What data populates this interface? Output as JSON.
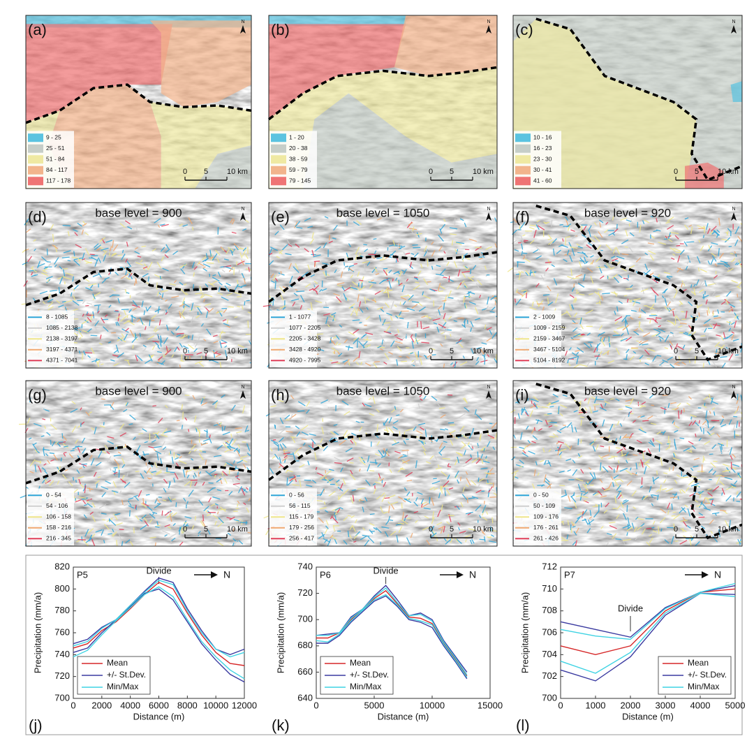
{
  "maps": [
    {
      "label": "(a)",
      "legend": [
        "9 - 25",
        "25 - 51",
        "51 - 84",
        "84 - 117",
        "117 - 178"
      ],
      "scale": [
        "0",
        "5",
        "10 km"
      ],
      "north": "N"
    },
    {
      "label": "(b)",
      "legend": [
        "1 - 20",
        "20 - 38",
        "38 - 59",
        "59 - 79",
        "79 - 145"
      ],
      "scale": [
        "0",
        "5",
        "10 km"
      ],
      "north": "N"
    },
    {
      "label": "(c)",
      "legend": [
        "10 - 16",
        "16 - 23",
        "23 - 30",
        "30 - 41",
        "41 - 60"
      ],
      "scale": [
        "0",
        "5",
        "10 km"
      ],
      "north": "N"
    },
    {
      "label": "(d)",
      "subtitle": "base level = 900",
      "legend": [
        "8 - 1085",
        "1085 - 2138",
        "2138 - 3197",
        "3197 - 4371",
        "4371 - 7041"
      ],
      "scale": [
        "0",
        "5",
        "10 km"
      ],
      "north": "N"
    },
    {
      "label": "(e)",
      "subtitle": "base level = 1050",
      "legend": [
        "1 - 1077",
        "1077 - 2205",
        "2205 - 3428",
        "3428 - 4920",
        "4920 - 7995"
      ],
      "scale": [
        "0",
        "5",
        "10 km"
      ],
      "north": "N"
    },
    {
      "label": "(f)",
      "subtitle": "base level = 920",
      "legend": [
        "2 - 1009",
        "1009 - 2159",
        "2159 - 3467",
        "3467 - 5104",
        "5104 - 8192"
      ],
      "scale": [
        "0",
        "5",
        "10 km"
      ],
      "north": "N"
    },
    {
      "label": "(g)",
      "subtitle": "base level = 900",
      "legend": [
        "0 - 54",
        "54 - 106",
        "106 - 158",
        "158 - 216",
        "216 - 345"
      ],
      "scale": [
        "0",
        "5",
        "10 km"
      ],
      "north": "N"
    },
    {
      "label": "(h)",
      "subtitle": "base level = 1050",
      "legend": [
        "0 - 56",
        "56 - 115",
        "115 - 179",
        "179 - 256",
        "256 - 417"
      ],
      "scale": [
        "0",
        "5",
        "10 km"
      ],
      "north": "N"
    },
    {
      "label": "(i)",
      "subtitle": "base level = 920",
      "legend": [
        "0 - 50",
        "50 - 109",
        "109 - 176",
        "176 - 261",
        "261 - 426"
      ],
      "scale": [
        "0",
        "5",
        "10 km"
      ],
      "north": "N"
    }
  ],
  "map_legend_colors": {
    "fill": [
      "#5bc3e0",
      "#c6cec8",
      "#efe9a2",
      "#f2b48c",
      "#ef7474"
    ],
    "line": [
      "#2fa6d8",
      "#cfcfcf",
      "#efe68a",
      "#f0a870",
      "#e0405a"
    ]
  },
  "chart_data": [
    {
      "type": "line",
      "label": "(j)",
      "title": "P5",
      "annotation": "Divide",
      "north": "N",
      "xlabel": "Distance (m)",
      "ylabel": "Precipitation (mm/a)",
      "x": [
        0,
        1000,
        2000,
        3000,
        4000,
        5000,
        6000,
        7000,
        8000,
        9000,
        10000,
        11000,
        12000
      ],
      "xlim": [
        0,
        12000
      ],
      "xticks": [
        0,
        2000,
        4000,
        6000,
        8000,
        10000,
        12000
      ],
      "ylim": [
        700,
        820
      ],
      "yticks": [
        700,
        720,
        740,
        760,
        780,
        800,
        820
      ],
      "legend_position": "lower left",
      "series": [
        {
          "name": "Mean",
          "color": "#d62728",
          "values": [
            746,
            750,
            762,
            770,
            782,
            795,
            806,
            800,
            778,
            758,
            742,
            732,
            730
          ]
        },
        {
          "name": "+/- St.Dev.",
          "color": "#3a3aa0",
          "upper": [
            750,
            754,
            765,
            772,
            785,
            798,
            810,
            806,
            782,
            762,
            745,
            740,
            745
          ],
          "lower": [
            742,
            746,
            760,
            772,
            784,
            796,
            800,
            790,
            770,
            750,
            735,
            722,
            715
          ]
        },
        {
          "name": "Min/Max",
          "color": "#3fd3e3",
          "upper": [
            748,
            752,
            764,
            772,
            785,
            797,
            808,
            804,
            780,
            760,
            745,
            738,
            742
          ],
          "lower": [
            738,
            744,
            758,
            771,
            783,
            795,
            802,
            793,
            772,
            752,
            738,
            726,
            718
          ]
        }
      ]
    },
    {
      "type": "line",
      "label": "(k)",
      "title": "P6",
      "annotation": "Divide",
      "north": "N",
      "xlabel": "Distance (m)",
      "ylabel": "Precipitation (mm/a)",
      "x": [
        0,
        1000,
        2000,
        3000,
        4000,
        5000,
        6000,
        7000,
        8000,
        9000,
        10000,
        11000,
        12000,
        13000
      ],
      "xlim": [
        0,
        15000
      ],
      "xticks": [
        0,
        5000,
        10000,
        15000
      ],
      "ylim": [
        640,
        740
      ],
      "yticks": [
        640,
        660,
        680,
        700,
        720,
        740
      ],
      "legend_position": "lower left",
      "series": [
        {
          "name": "Mean",
          "color": "#d62728",
          "values": [
            686,
            686,
            690,
            700,
            708,
            716,
            722,
            712,
            702,
            701,
            697,
            682,
            670,
            657
          ]
        },
        {
          "name": "+/- St.Dev.",
          "color": "#3a3aa0",
          "upper": [
            688,
            689,
            690,
            702,
            708,
            718,
            726,
            715,
            703,
            705,
            700,
            684,
            672,
            660
          ],
          "lower": [
            682,
            682,
            688,
            698,
            706,
            714,
            718,
            710,
            700,
            698,
            694,
            680,
            668,
            655
          ]
        },
        {
          "name": "Min/Max",
          "color": "#3fd3e3",
          "upper": [
            688,
            688,
            690,
            701,
            708,
            717,
            724,
            713,
            703,
            704,
            699,
            683,
            671,
            658
          ],
          "lower": [
            684,
            683,
            689,
            699,
            707,
            715,
            719,
            711,
            701,
            699,
            696,
            681,
            669,
            656
          ]
        }
      ]
    },
    {
      "type": "line",
      "label": "(l)",
      "title": "P7",
      "annotation": "Divide",
      "north": "N",
      "xlabel": "Distance (m)",
      "ylabel": "Precipitation (mm/a)",
      "x": [
        0,
        1000,
        2000,
        3000,
        4000,
        5000
      ],
      "xlim": [
        0,
        5000
      ],
      "xticks": [
        0,
        1000,
        2000,
        3000,
        4000,
        5000
      ],
      "ylim": [
        700,
        712
      ],
      "yticks": [
        700,
        702,
        704,
        706,
        708,
        710,
        712
      ],
      "legend_position": "lower right",
      "series": [
        {
          "name": "Mean",
          "color": "#d62728",
          "values": [
            704.8,
            704.0,
            704.8,
            708.0,
            709.7,
            710.0
          ]
        },
        {
          "name": "+/- St.Dev.",
          "color": "#3a3aa0",
          "upper": [
            707.0,
            706.3,
            705.6,
            708.3,
            709.7,
            710.3
          ],
          "lower": [
            702.6,
            701.6,
            703.8,
            707.6,
            709.6,
            709.5
          ]
        },
        {
          "name": "Min/Max",
          "color": "#3fd3e3",
          "upper": [
            706.3,
            705.7,
            705.4,
            708.2,
            709.7,
            710.5
          ],
          "lower": [
            703.4,
            702.3,
            704.2,
            707.8,
            709.6,
            709.3
          ]
        }
      ]
    }
  ]
}
